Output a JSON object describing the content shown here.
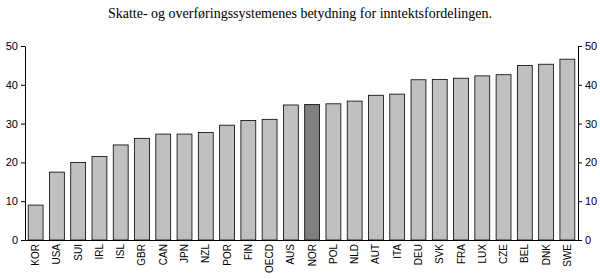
{
  "chart_data": {
    "type": "bar",
    "title": "Skatte- og overføringssystemenes betydning for inntektsfordelingen.",
    "categories": [
      "KOR",
      "USA",
      "SUI",
      "IRL",
      "ISL",
      "GBR",
      "CAN",
      "JPN",
      "NZL",
      "POR",
      "FIN",
      "OECD",
      "AUS",
      "NOR",
      "POL",
      "NLD",
      "AUT",
      "ITA",
      "DEU",
      "SVK",
      "FRA",
      "LUX",
      "CZE",
      "BEL",
      "DNK",
      "SWE"
    ],
    "values": [
      9,
      17.5,
      20,
      21.5,
      24.5,
      26.2,
      27.3,
      27.3,
      27.7,
      29.6,
      30.8,
      31.1,
      34.8,
      34.9,
      35.1,
      35.8,
      37.3,
      37.6,
      41.3,
      41.4,
      41.7,
      42.3,
      42.6,
      45.0,
      45.3,
      46.6
    ],
    "colors": [
      "#c0c0c0",
      "#c0c0c0",
      "#c0c0c0",
      "#c0c0c0",
      "#c0c0c0",
      "#c0c0c0",
      "#c0c0c0",
      "#c0c0c0",
      "#c0c0c0",
      "#c0c0c0",
      "#c0c0c0",
      "#c0c0c0",
      "#c0c0c0",
      "#808080",
      "#c0c0c0",
      "#c0c0c0",
      "#c0c0c0",
      "#c0c0c0",
      "#c0c0c0",
      "#c0c0c0",
      "#c0c0c0",
      "#c0c0c0",
      "#c0c0c0",
      "#c0c0c0",
      "#c0c0c0",
      "#c0c0c0"
    ],
    "ylim": [
      0,
      50
    ],
    "yticks": [
      0,
      10,
      20,
      30,
      40,
      50
    ],
    "grid": false
  }
}
